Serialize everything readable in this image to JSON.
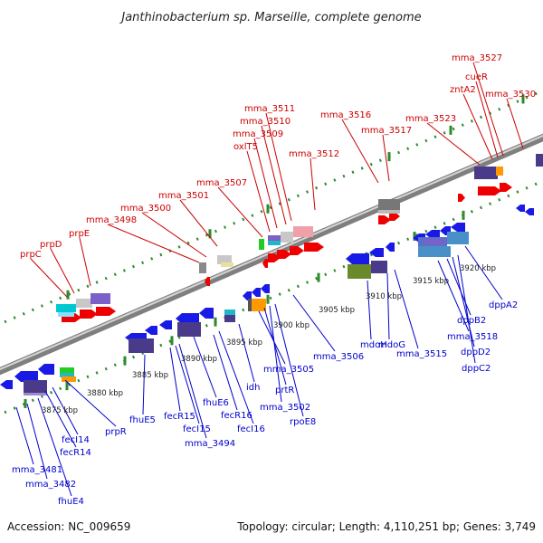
{
  "title": "Janthinobacterium sp. Marseille, complete genome",
  "footer": {
    "accession": "Accession: NC_009659",
    "summary": "Topology: circular; Length: 4,110,251 bp; Genes: 3,749"
  },
  "colors": {
    "top_label": "#cc0000",
    "bottom_label": "#0000cc",
    "backbone": "#9a9a9a",
    "track_dot": "#2d8a2d"
  },
  "ticks": [
    "3875 kbp",
    "3880 kbp",
    "3885 kbp",
    "3890 kbp",
    "3895 kbp",
    "3900 kbp",
    "3905 kbp",
    "3910 kbp",
    "3915 kbp",
    "3920 kbp"
  ],
  "top_labels": [
    "prpC",
    "prpD",
    "prpE",
    "mma_3498",
    "mma_3500",
    "mma_3501",
    "mma_3507",
    "oxlT5",
    "mma_3509",
    "mma_3510",
    "mma_3511",
    "mma_3512",
    "mma_3516",
    "mma_3517",
    "mma_3523",
    "zntA2",
    "cueR",
    "mma_3527",
    "mma_3530"
  ],
  "bottom_labels": [
    "mma_3481",
    "mma_3482",
    "fhuE4",
    "fecR14",
    "fecI14",
    "prpR",
    "fhuE5",
    "fecR15",
    "fecI15",
    "mma_3494",
    "fhuE6",
    "fecR16",
    "fecI16",
    "idh",
    "mma_3505",
    "prtR",
    "mma_3502",
    "rpoE8",
    "mma_3506",
    "mdoH",
    "mdoG",
    "mma_3515",
    "mma_3518",
    "dppB2",
    "dppD2",
    "dppC2",
    "dppA2"
  ]
}
